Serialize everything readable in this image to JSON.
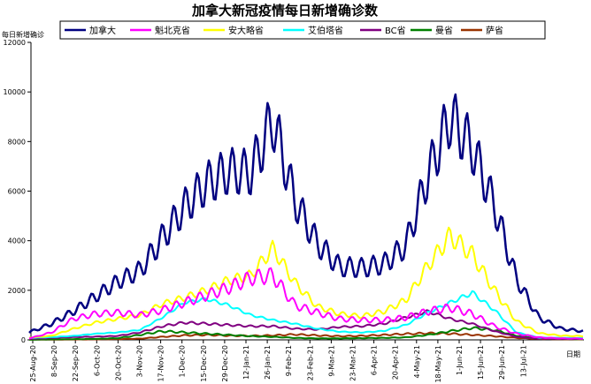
{
  "chart_data": {
    "type": "line",
    "title": "加拿大新冠疫情每日新增确诊数",
    "ylabel": "每日新增确诊",
    "xlabel": "日期",
    "ylim": [
      0,
      12000
    ],
    "y_ticks": [
      0,
      2000,
      4000,
      6000,
      8000,
      10000,
      12000
    ],
    "x_ticks": [
      "25-Aug-20",
      "8-Sep-20",
      "22-Sep-20",
      "6-Oct-20",
      "20-Oct-20",
      "3-Nov-20",
      "17-Nov-20",
      "1-Dec-20",
      "15-Dec-20",
      "29-Dec-20",
      "12-Jan-21",
      "26-Jan-21",
      "9-Feb-21",
      "23-Feb-21",
      "9-Mar-21",
      "23-Mar-21",
      "6-Apr-21",
      "20-Apr-21",
      "4-May-21",
      "18-May-21",
      "1-Jun-21",
      "15-Jun-21",
      "29-Jun-21",
      "13-Jul-21"
    ],
    "grid": false,
    "legend_position": "top",
    "series": [
      {
        "name": "加拿大",
        "color": "#000080",
        "values": [
          300,
          650,
          1150,
          1750,
          2350,
          2800,
          4100,
          5350,
          6300,
          6800,
          6750,
          8900,
          5600,
          3900,
          2950,
          2900,
          3050,
          3800,
          6650,
          9000,
          7750,
          5400,
          2450,
          900,
          450,
          350
        ]
      },
      {
        "name": "魁北克省",
        "color": "#ff00ff",
        "values": [
          60,
          300,
          850,
          1050,
          1100,
          1000,
          1200,
          1500,
          1800,
          2100,
          2500,
          2600,
          1400,
          1100,
          850,
          800,
          800,
          900,
          1150,
          1300,
          1050,
          550,
          250,
          100,
          60,
          50
        ]
      },
      {
        "name": "安大略省",
        "color": "#ffff00",
        "values": [
          90,
          160,
          450,
          700,
          850,
          1000,
          1450,
          1700,
          2000,
          2400,
          2600,
          3700,
          2300,
          1350,
          1050,
          950,
          1150,
          1600,
          3000,
          4200,
          3450,
          2000,
          750,
          270,
          170,
          150
        ]
      },
      {
        "name": "艾伯塔省",
        "color": "#00ffff",
        "values": [
          80,
          110,
          160,
          250,
          300,
          400,
          900,
          1500,
          1650,
          1400,
          1000,
          800,
          650,
          450,
          330,
          300,
          360,
          600,
          1100,
          1500,
          1900,
          1200,
          300,
          90,
          80,
          70
        ]
      },
      {
        "name": "BC省",
        "color": "#800080",
        "values": [
          40,
          80,
          110,
          130,
          160,
          300,
          550,
          700,
          650,
          600,
          550,
          550,
          450,
          420,
          520,
          550,
          650,
          900,
          1150,
          850,
          650,
          350,
          120,
          50,
          40,
          40
        ]
      },
      {
        "name": "曼省",
        "color": "#008000",
        "values": [
          10,
          20,
          30,
          40,
          70,
          200,
          350,
          300,
          250,
          200,
          150,
          120,
          80,
          60,
          60,
          70,
          80,
          100,
          200,
          350,
          480,
          400,
          170,
          70,
          40,
          30
        ]
      },
      {
        "name": "萨省",
        "color": "#993300",
        "values": [
          5,
          10,
          15,
          20,
          30,
          50,
          120,
          180,
          200,
          170,
          160,
          180,
          220,
          180,
          150,
          160,
          200,
          240,
          270,
          250,
          200,
          150,
          80,
          40,
          25,
          20
        ]
      }
    ]
  }
}
